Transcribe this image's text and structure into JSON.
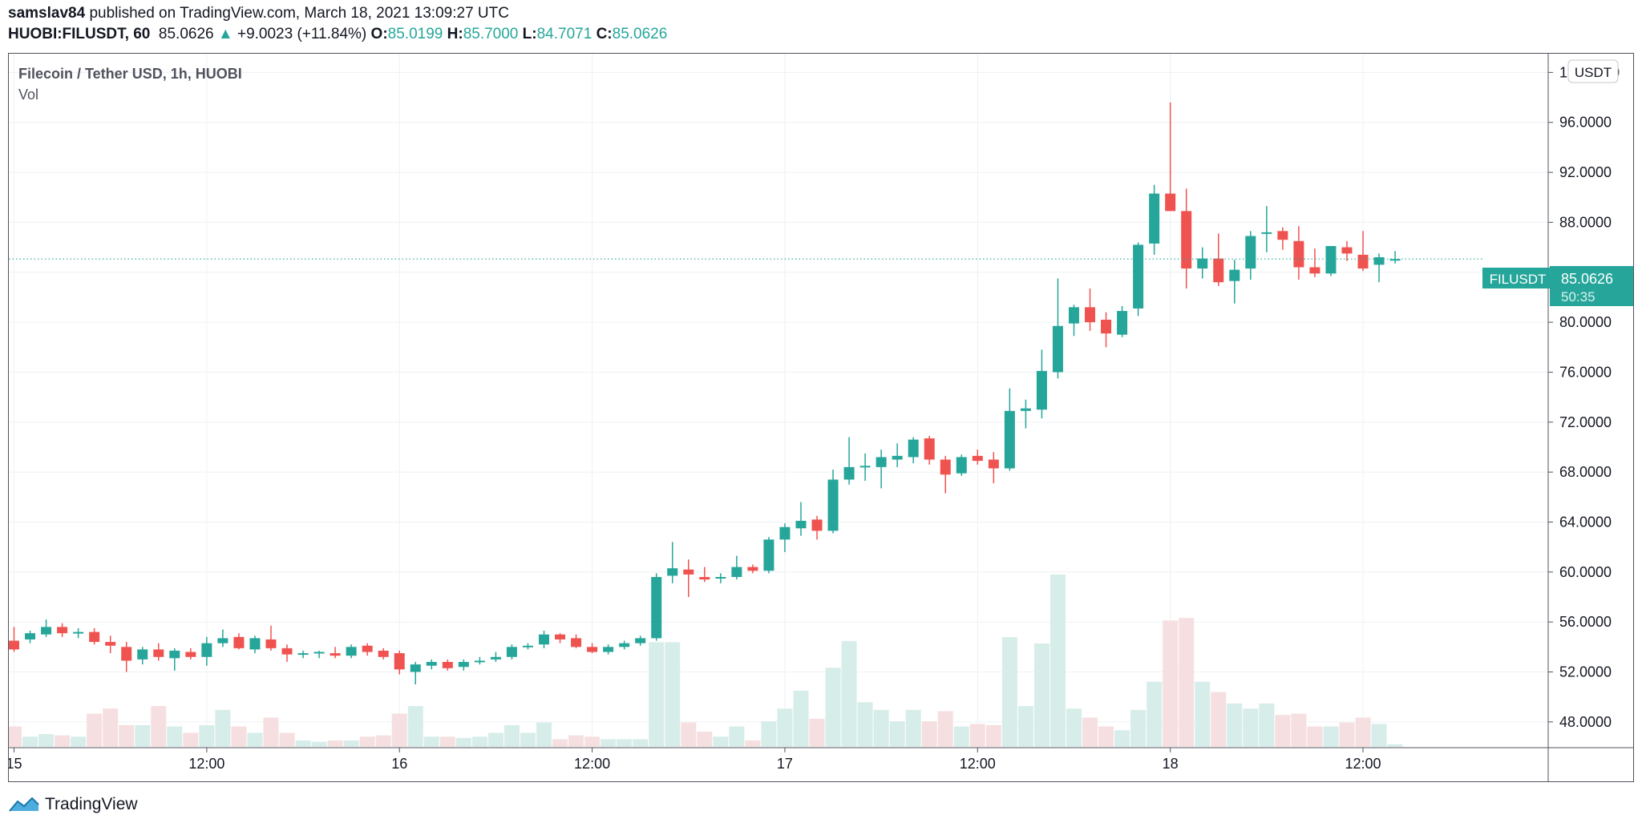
{
  "header": {
    "author": "samslav84",
    "published_text": "published on TradingView.com, March 18, 2021 13:09:27 UTC",
    "symbol": "HUOBI:FILUSDT, 60",
    "last": "85.0626",
    "change_arrow": "▲",
    "change": "+9.0023 (+11.84%)",
    "o_label": "O:",
    "o_value": "85.0199",
    "h_label": "H:",
    "h_value": "85.7000",
    "l_label": "L:",
    "l_value": "84.7071",
    "c_label": "C:",
    "c_value": "85.0626"
  },
  "pane": {
    "title": "Filecoin / Tether USD, 1h, HUOBI",
    "vol_label": "Vol",
    "currency_badge": "USDT",
    "price_label_symbol": "FILUSDT",
    "price_label_value": "85.0626",
    "countdown": "50:35"
  },
  "footer": {
    "brand": "TradingView",
    "logo_icon": "tradingview-logo-icon"
  },
  "colors": {
    "up": "#26a69a",
    "down": "#ef5350",
    "up_vol": "#d7ede9",
    "down_vol": "#f6dfe0",
    "grid": "#eef0f4"
  },
  "chart_data": {
    "type": "candlestick",
    "title": "Filecoin / Tether USD, 1h, HUOBI",
    "ylim": [
      46.0,
      101.5
    ],
    "y_ticks": [
      48,
      52,
      56,
      60,
      64,
      68,
      72,
      76,
      80,
      84,
      88,
      92,
      96,
      100
    ],
    "y_tick_labels": [
      "48.0000",
      "52.0000",
      "56.0000",
      "60.0000",
      "64.0000",
      "68.0000",
      "72.0000",
      "76.0000",
      "80.0000",
      "84.0000",
      "88.0000",
      "92.0000",
      "96.0000",
      "100.0000"
    ],
    "x_ticks": [
      {
        "index": 0,
        "label": "15"
      },
      {
        "index": 12,
        "label": "12:00"
      },
      {
        "index": 24,
        "label": "16"
      },
      {
        "index": 36,
        "label": "12:00"
      },
      {
        "index": 48,
        "label": "17"
      },
      {
        "index": 60,
        "label": "12:00"
      },
      {
        "index": 72,
        "label": "18"
      },
      {
        "index": 84,
        "label": "12:00"
      }
    ],
    "last_price": 85.0626,
    "candles": [
      {
        "o": 54.5,
        "h": 55.6,
        "l": 53.6,
        "c": 53.8,
        "v": 1.6
      },
      {
        "o": 54.6,
        "h": 55.3,
        "l": 54.3,
        "c": 55.1,
        "v": 0.8
      },
      {
        "o": 55.0,
        "h": 56.2,
        "l": 54.8,
        "c": 55.6,
        "v": 1.0
      },
      {
        "o": 55.6,
        "h": 55.9,
        "l": 54.8,
        "c": 55.1,
        "v": 0.9
      },
      {
        "o": 55.1,
        "h": 55.5,
        "l": 54.7,
        "c": 55.2,
        "v": 0.8
      },
      {
        "o": 55.2,
        "h": 55.5,
        "l": 54.2,
        "c": 54.4,
        "v": 2.6
      },
      {
        "o": 54.4,
        "h": 54.9,
        "l": 53.5,
        "c": 54.1,
        "v": 3.0
      },
      {
        "o": 54.0,
        "h": 54.4,
        "l": 52.0,
        "c": 52.9,
        "v": 1.7
      },
      {
        "o": 53.0,
        "h": 54.0,
        "l": 52.6,
        "c": 53.8,
        "v": 1.7
      },
      {
        "o": 53.8,
        "h": 54.3,
        "l": 52.9,
        "c": 53.2,
        "v": 3.2
      },
      {
        "o": 53.1,
        "h": 53.9,
        "l": 52.1,
        "c": 53.7,
        "v": 1.6
      },
      {
        "o": 53.6,
        "h": 53.9,
        "l": 53.0,
        "c": 53.2,
        "v": 1.1
      },
      {
        "o": 53.2,
        "h": 54.8,
        "l": 52.5,
        "c": 54.3,
        "v": 1.7
      },
      {
        "o": 54.3,
        "h": 55.4,
        "l": 54.0,
        "c": 54.7,
        "v": 2.9
      },
      {
        "o": 54.8,
        "h": 55.1,
        "l": 53.8,
        "c": 53.9,
        "v": 1.6
      },
      {
        "o": 53.8,
        "h": 54.9,
        "l": 53.5,
        "c": 54.7,
        "v": 1.1
      },
      {
        "o": 54.6,
        "h": 55.7,
        "l": 53.7,
        "c": 53.9,
        "v": 2.3
      },
      {
        "o": 53.9,
        "h": 54.2,
        "l": 52.8,
        "c": 53.4,
        "v": 1.1
      },
      {
        "o": 53.4,
        "h": 53.7,
        "l": 53.1,
        "c": 53.5,
        "v": 0.5
      },
      {
        "o": 53.5,
        "h": 53.7,
        "l": 53.1,
        "c": 53.6,
        "v": 0.4
      },
      {
        "o": 53.5,
        "h": 54.0,
        "l": 53.1,
        "c": 53.3,
        "v": 0.5
      },
      {
        "o": 53.3,
        "h": 54.2,
        "l": 53.1,
        "c": 54.0,
        "v": 0.5
      },
      {
        "o": 54.1,
        "h": 54.3,
        "l": 53.3,
        "c": 53.6,
        "v": 0.8
      },
      {
        "o": 53.7,
        "h": 53.9,
        "l": 53.0,
        "c": 53.2,
        "v": 0.9
      },
      {
        "o": 53.5,
        "h": 53.7,
        "l": 51.8,
        "c": 52.2,
        "v": 2.6
      },
      {
        "o": 52.0,
        "h": 52.8,
        "l": 51.0,
        "c": 52.6,
        "v": 3.2
      },
      {
        "o": 52.5,
        "h": 53.0,
        "l": 52.2,
        "c": 52.8,
        "v": 0.8
      },
      {
        "o": 52.8,
        "h": 53.0,
        "l": 52.1,
        "c": 52.3,
        "v": 0.8
      },
      {
        "o": 52.4,
        "h": 53.0,
        "l": 52.1,
        "c": 52.8,
        "v": 0.7
      },
      {
        "o": 52.8,
        "h": 53.2,
        "l": 52.6,
        "c": 52.9,
        "v": 0.8
      },
      {
        "o": 53.0,
        "h": 53.6,
        "l": 52.8,
        "c": 53.2,
        "v": 1.1
      },
      {
        "o": 53.2,
        "h": 54.2,
        "l": 53.0,
        "c": 54.0,
        "v": 1.7
      },
      {
        "o": 54.0,
        "h": 54.3,
        "l": 53.8,
        "c": 54.1,
        "v": 1.1
      },
      {
        "o": 54.2,
        "h": 55.3,
        "l": 53.9,
        "c": 55.0,
        "v": 1.9
      },
      {
        "o": 55.0,
        "h": 55.1,
        "l": 54.3,
        "c": 54.6,
        "v": 0.6
      },
      {
        "o": 54.7,
        "h": 55.0,
        "l": 53.9,
        "c": 54.0,
        "v": 0.9
      },
      {
        "o": 54.0,
        "h": 54.3,
        "l": 53.5,
        "c": 53.6,
        "v": 0.8
      },
      {
        "o": 53.6,
        "h": 54.2,
        "l": 53.4,
        "c": 54.0,
        "v": 0.6
      },
      {
        "o": 54.0,
        "h": 54.5,
        "l": 53.8,
        "c": 54.3,
        "v": 0.6
      },
      {
        "o": 54.3,
        "h": 54.9,
        "l": 54.1,
        "c": 54.7,
        "v": 0.6
      },
      {
        "o": 54.7,
        "h": 59.9,
        "l": 54.5,
        "c": 59.6,
        "v": 8.2
      },
      {
        "o": 59.7,
        "h": 62.4,
        "l": 59.1,
        "c": 60.3,
        "v": 8.2
      },
      {
        "o": 60.2,
        "h": 61.0,
        "l": 58.0,
        "c": 59.8,
        "v": 1.9
      },
      {
        "o": 59.6,
        "h": 60.4,
        "l": 59.2,
        "c": 59.4,
        "v": 1.2
      },
      {
        "o": 59.5,
        "h": 59.9,
        "l": 59.1,
        "c": 59.6,
        "v": 0.8
      },
      {
        "o": 59.6,
        "h": 61.3,
        "l": 59.4,
        "c": 60.4,
        "v": 1.6
      },
      {
        "o": 60.4,
        "h": 60.6,
        "l": 59.9,
        "c": 60.1,
        "v": 0.5
      },
      {
        "o": 60.1,
        "h": 62.8,
        "l": 59.9,
        "c": 62.6,
        "v": 2.0
      },
      {
        "o": 62.6,
        "h": 63.9,
        "l": 61.6,
        "c": 63.6,
        "v": 3.0
      },
      {
        "o": 63.5,
        "h": 65.6,
        "l": 62.9,
        "c": 64.1,
        "v": 4.4
      },
      {
        "o": 64.2,
        "h": 64.5,
        "l": 62.6,
        "c": 63.3,
        "v": 2.2
      },
      {
        "o": 63.3,
        "h": 68.2,
        "l": 63.1,
        "c": 67.4,
        "v": 6.2
      },
      {
        "o": 67.4,
        "h": 70.8,
        "l": 67.0,
        "c": 68.4,
        "v": 8.3
      },
      {
        "o": 68.4,
        "h": 69.5,
        "l": 67.3,
        "c": 68.5,
        "v": 3.5
      },
      {
        "o": 68.4,
        "h": 69.8,
        "l": 66.7,
        "c": 69.2,
        "v": 2.9
      },
      {
        "o": 69.0,
        "h": 70.3,
        "l": 68.4,
        "c": 69.3,
        "v": 2.0
      },
      {
        "o": 69.2,
        "h": 70.8,
        "l": 68.7,
        "c": 70.6,
        "v": 2.9
      },
      {
        "o": 70.7,
        "h": 70.9,
        "l": 68.6,
        "c": 69.0,
        "v": 2.0
      },
      {
        "o": 69.0,
        "h": 69.3,
        "l": 66.3,
        "c": 67.8,
        "v": 2.8
      },
      {
        "o": 67.9,
        "h": 69.4,
        "l": 67.7,
        "c": 69.2,
        "v": 1.6
      },
      {
        "o": 69.3,
        "h": 69.8,
        "l": 68.6,
        "c": 68.9,
        "v": 1.8
      },
      {
        "o": 69.0,
        "h": 69.6,
        "l": 67.1,
        "c": 68.3,
        "v": 1.7
      },
      {
        "o": 68.3,
        "h": 74.7,
        "l": 68.1,
        "c": 72.9,
        "v": 8.6
      },
      {
        "o": 72.9,
        "h": 73.8,
        "l": 71.5,
        "c": 73.1,
        "v": 3.2
      },
      {
        "o": 73.0,
        "h": 77.8,
        "l": 72.3,
        "c": 76.1,
        "v": 8.1
      },
      {
        "o": 76.0,
        "h": 83.5,
        "l": 75.5,
        "c": 79.7,
        "v": 13.5
      },
      {
        "o": 79.9,
        "h": 81.4,
        "l": 78.9,
        "c": 81.2,
        "v": 3.0
      },
      {
        "o": 81.2,
        "h": 82.7,
        "l": 79.3,
        "c": 80.0,
        "v": 2.3
      },
      {
        "o": 80.2,
        "h": 80.8,
        "l": 78.0,
        "c": 79.1,
        "v": 1.6
      },
      {
        "o": 79.0,
        "h": 81.3,
        "l": 78.8,
        "c": 80.9,
        "v": 1.3
      },
      {
        "o": 81.1,
        "h": 86.4,
        "l": 80.5,
        "c": 86.2,
        "v": 2.9
      },
      {
        "o": 86.3,
        "h": 91.0,
        "l": 85.4,
        "c": 90.3,
        "v": 5.1
      },
      {
        "o": 90.3,
        "h": 97.6,
        "l": 88.9,
        "c": 88.9,
        "v": 9.9
      },
      {
        "o": 88.9,
        "h": 90.7,
        "l": 82.7,
        "c": 84.3,
        "v": 10.1
      },
      {
        "o": 84.3,
        "h": 86.0,
        "l": 83.5,
        "c": 85.1,
        "v": 5.1
      },
      {
        "o": 85.1,
        "h": 87.1,
        "l": 82.9,
        "c": 83.2,
        "v": 4.3
      },
      {
        "o": 83.3,
        "h": 85.0,
        "l": 81.5,
        "c": 84.2,
        "v": 3.4
      },
      {
        "o": 84.3,
        "h": 87.3,
        "l": 83.4,
        "c": 86.9,
        "v": 3.0
      },
      {
        "o": 87.1,
        "h": 89.3,
        "l": 85.6,
        "c": 87.2,
        "v": 3.4
      },
      {
        "o": 87.3,
        "h": 87.6,
        "l": 85.8,
        "c": 86.6,
        "v": 2.5
      },
      {
        "o": 86.5,
        "h": 87.7,
        "l": 83.4,
        "c": 84.4,
        "v": 2.6
      },
      {
        "o": 84.4,
        "h": 85.9,
        "l": 83.6,
        "c": 83.9,
        "v": 1.6
      },
      {
        "o": 83.9,
        "h": 86.1,
        "l": 83.7,
        "c": 86.1,
        "v": 1.6
      },
      {
        "o": 86.0,
        "h": 86.5,
        "l": 84.9,
        "c": 85.5,
        "v": 1.9
      },
      {
        "o": 85.4,
        "h": 87.3,
        "l": 84.1,
        "c": 84.3,
        "v": 2.3
      },
      {
        "o": 84.6,
        "h": 85.5,
        "l": 83.2,
        "c": 85.2,
        "v": 1.8
      },
      {
        "o": 85.0,
        "h": 85.7,
        "l": 84.7,
        "c": 85.06,
        "v": 0.2
      }
    ]
  }
}
